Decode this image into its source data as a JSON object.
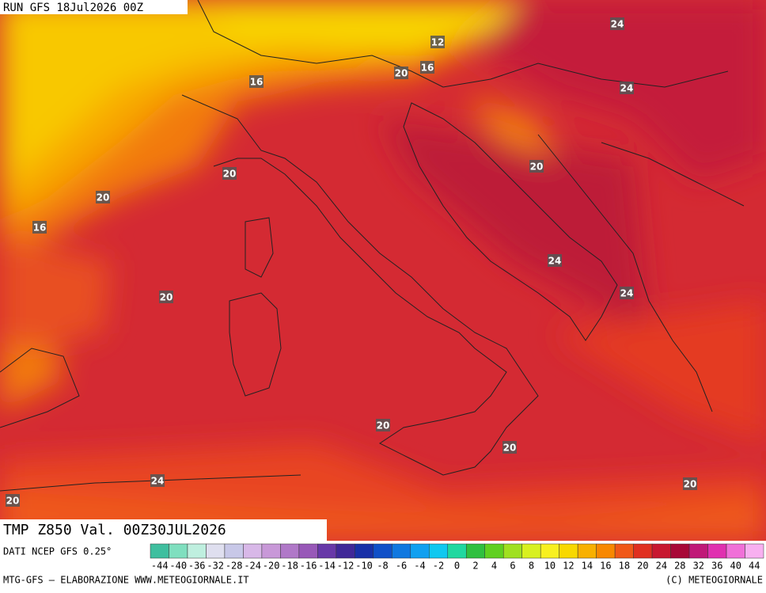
{
  "header": {
    "run": "RUN GFS 18Jul2026 00Z"
  },
  "map": {
    "field": "TMP Z850 Val. 00Z30JUL2026",
    "contour_labels": [
      12,
      24,
      16,
      20,
      16,
      24,
      20,
      20,
      20,
      16,
      24,
      20,
      24,
      20,
      20,
      24,
      20,
      20
    ]
  },
  "footer": {
    "source": "DATI NCEP GFS 0.25°",
    "credit": "MTG-GFS — ELABORAZIONE WWW.METEOGIORNALE.IT",
    "copyright": "(C) METEOGIORNALE"
  },
  "colorbar": {
    "ticks": [
      -44,
      -40,
      -36,
      -32,
      -28,
      -24,
      -20,
      -18,
      -16,
      -14,
      -12,
      -10,
      -8,
      -6,
      -4,
      -2,
      0,
      2,
      4,
      6,
      8,
      10,
      12,
      14,
      16,
      18,
      20,
      24,
      28,
      32,
      36,
      40,
      44
    ],
    "colors": [
      "#3fbf9f",
      "#7fdfbf",
      "#bfefdf",
      "#dfdfef",
      "#c8c8e8",
      "#d8b8e8",
      "#c898d8",
      "#b078c8",
      "#9858b8",
      "#6838a8",
      "#402898",
      "#1830a8",
      "#1050c8",
      "#1078e0",
      "#10a0f0",
      "#10c8f0",
      "#20d8a0",
      "#30c040",
      "#60d020",
      "#a0e020",
      "#d8f020",
      "#f8f020",
      "#f8d800",
      "#f8b000",
      "#f88800",
      "#f05818",
      "#e03020",
      "#c81830",
      "#a80838",
      "#c01878",
      "#e030b0",
      "#f070d8",
      "#f8b0f0"
    ]
  }
}
